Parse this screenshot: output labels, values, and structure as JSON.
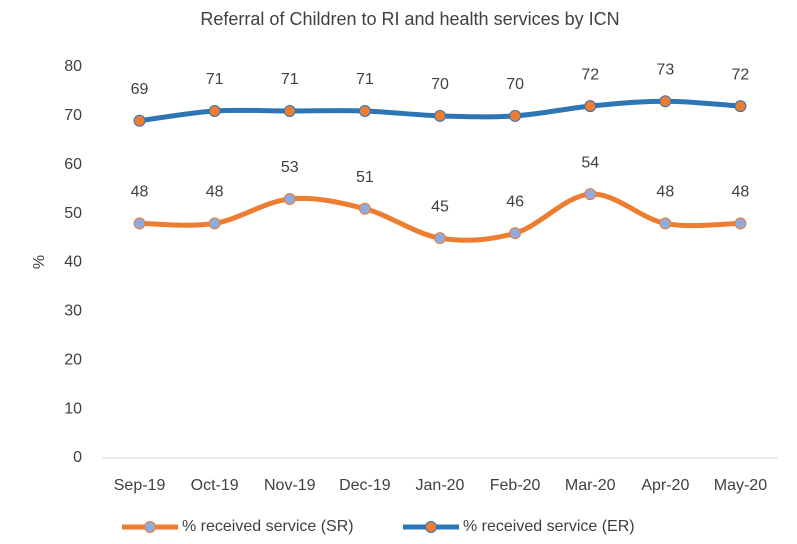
{
  "chart_data": {
    "type": "line",
    "title": "Referral of Children to RI and health services by ICN",
    "y_label": "%",
    "categories": [
      "Sep-19",
      "Oct-19",
      "Nov-19",
      "Dec-19",
      "Jan-20",
      "Feb-20",
      "Mar-20",
      "Apr-20",
      "May-20"
    ],
    "series": [
      {
        "name": "% received service (SR)",
        "color": "#ED7D31",
        "marker_color": "#8FAADC",
        "values": [
          48,
          48,
          53,
          51,
          45,
          46,
          54,
          48,
          48
        ]
      },
      {
        "name": "% received service (ER)",
        "color": "#2E75B6",
        "marker_color": "#ED7D31",
        "values": [
          69,
          71,
          71,
          71,
          70,
          70,
          72,
          73,
          72
        ]
      }
    ],
    "ylim": [
      0,
      80
    ],
    "yticks": [
      0,
      10,
      20,
      30,
      40,
      50,
      60,
      70,
      80
    ],
    "grid": false,
    "smooth": true,
    "legend": "bottom"
  }
}
